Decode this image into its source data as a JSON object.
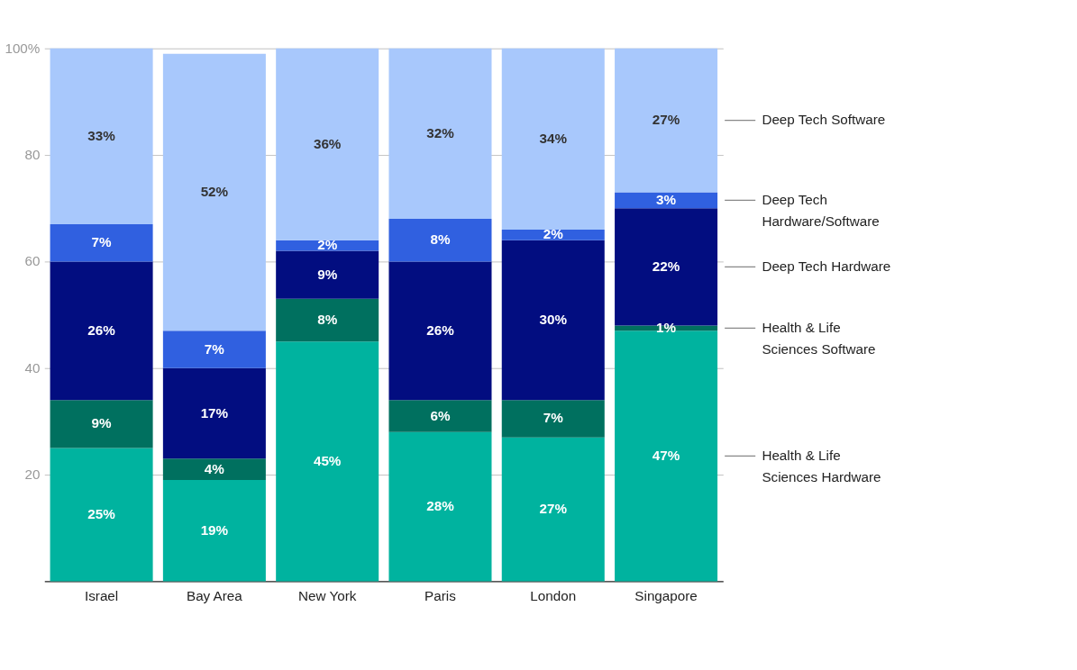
{
  "chart_data": {
    "type": "bar",
    "stacked": true,
    "grid": "y",
    "legend": "right",
    "categories": [
      "Israel",
      "Bay Area",
      "New York",
      "Paris",
      "London",
      "Singapore"
    ],
    "ylim": [
      0,
      100
    ],
    "yticks": [
      20,
      40,
      60,
      80,
      {
        "value": 100,
        "label": "100%"
      }
    ],
    "series": [
      {
        "name": "Health & Life Sciences Hardware",
        "color": "#00b39f",
        "values": [
          25,
          19,
          45,
          28,
          27,
          47
        ],
        "value_labels": [
          "25%",
          "19%",
          "45%",
          "28%",
          "27%",
          "47%"
        ]
      },
      {
        "name": "Health & Life Sciences Software",
        "color": "#00705f",
        "values": [
          9,
          4,
          8,
          6,
          7,
          1
        ],
        "value_labels": [
          "9%",
          "4%",
          "8%",
          "6%",
          "7%",
          "1%"
        ]
      },
      {
        "name": "Deep Tech Hardware",
        "color": "#020d80",
        "values": [
          26,
          17,
          9,
          26,
          30,
          22
        ],
        "value_labels": [
          "26%",
          "17%",
          "9%",
          "26%",
          "30%",
          "22%"
        ]
      },
      {
        "name": "Deep Tech Hardware/Software",
        "color": "#3060e0",
        "values": [
          7,
          7,
          2,
          8,
          2,
          3
        ],
        "value_labels": [
          "7%",
          "7%",
          "2%",
          "8%",
          "2%",
          "3%"
        ]
      },
      {
        "name": "Deep Tech Software",
        "color": "#a8c8fc",
        "values": [
          33,
          52,
          36,
          32,
          34,
          27
        ],
        "value_labels": [
          "33%",
          "52%",
          "36%",
          "32%",
          "34%",
          "27%"
        ]
      }
    ]
  }
}
